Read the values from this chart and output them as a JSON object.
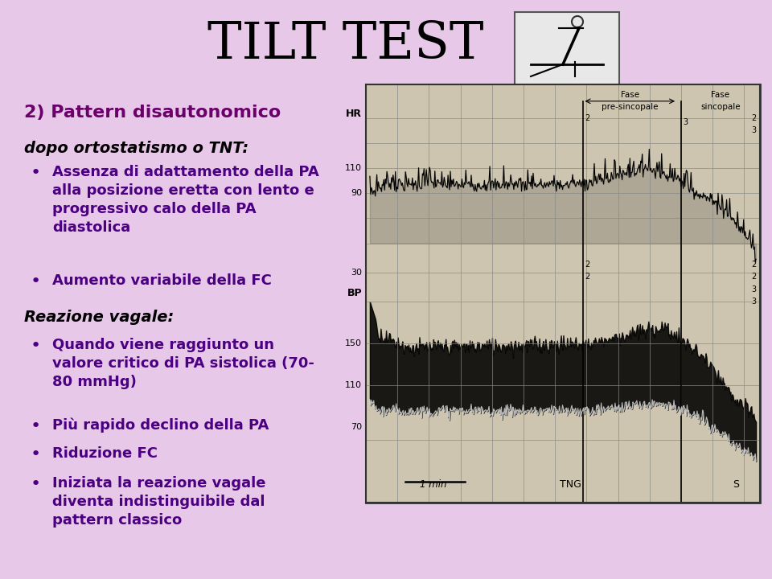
{
  "background_color": "#E8C8E8",
  "title": "TILT TEST",
  "title_fontsize": 46,
  "title_color": "#000000",
  "subtitle": "2) Pattern disautonomico",
  "subtitle_color": "#6B006B",
  "subtitle_fontsize": 16,
  "section1_header": "dopo ortostatismo o TNT:",
  "section1_header_fontsize": 14,
  "bullet_fontsize": 13,
  "bullet_color": "#4B0082",
  "section_header_color": "#000000",
  "graph_bg": "#d8d0c0",
  "graph_border": "#333333"
}
